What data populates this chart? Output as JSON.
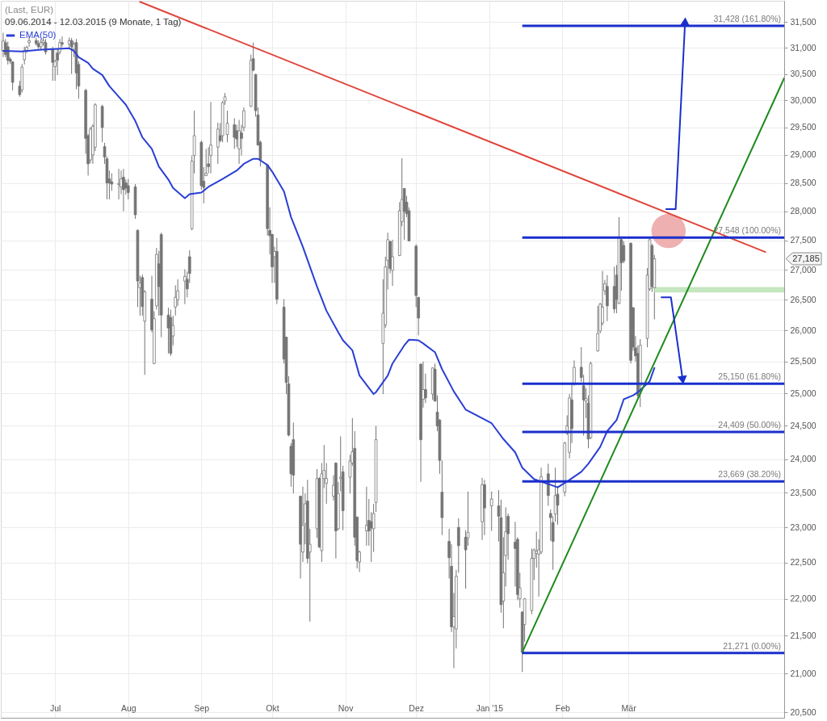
{
  "chart_data": {
    "type": "candlestick",
    "title": "(Last, EUR)",
    "subtitle": "09.06.2014 - 12.03.2015 (9 Monate, 1 Tag)",
    "x": [
      "2014-06-09",
      "2014-06-10",
      "2014-06-11",
      "2014-06-12",
      "2014-06-13",
      "2014-06-16",
      "2014-06-17",
      "2014-06-18",
      "2014-06-19",
      "2014-06-20",
      "2014-06-23",
      "2014-06-24",
      "2014-06-25",
      "2014-06-26",
      "2014-06-27",
      "2014-06-30",
      "2014-07-01",
      "2014-07-02",
      "2014-07-03",
      "2014-07-04",
      "2014-07-07",
      "2014-07-08",
      "2014-07-09",
      "2014-07-10",
      "2014-07-11",
      "2014-07-14",
      "2014-07-15",
      "2014-07-16",
      "2014-07-17",
      "2014-07-18",
      "2014-07-21",
      "2014-07-22",
      "2014-07-23",
      "2014-07-24",
      "2014-07-25",
      "2014-07-28",
      "2014-07-29",
      "2014-07-30",
      "2014-07-31",
      "2014-08-01",
      "2014-08-04",
      "2014-08-05",
      "2014-08-06",
      "2014-08-07",
      "2014-08-08",
      "2014-08-11",
      "2014-08-12",
      "2014-08-13",
      "2014-08-14",
      "2014-08-15",
      "2014-08-18",
      "2014-08-19",
      "2014-08-20",
      "2014-08-21",
      "2014-08-22",
      "2014-08-25",
      "2014-08-26",
      "2014-08-27",
      "2014-08-28",
      "2014-08-29",
      "2014-09-01",
      "2014-09-02",
      "2014-09-03",
      "2014-09-04",
      "2014-09-05",
      "2014-09-08",
      "2014-09-09",
      "2014-09-10",
      "2014-09-11",
      "2014-09-12",
      "2014-09-15",
      "2014-09-16",
      "2014-09-17",
      "2014-09-18",
      "2014-09-19",
      "2014-09-22",
      "2014-09-23",
      "2014-09-24",
      "2014-09-25",
      "2014-09-26",
      "2014-09-29",
      "2014-09-30",
      "2014-10-01",
      "2014-10-02",
      "2014-10-03",
      "2014-10-06",
      "2014-10-07",
      "2014-10-08",
      "2014-10-09",
      "2014-10-10",
      "2014-10-13",
      "2014-10-14",
      "2014-10-15",
      "2014-10-16",
      "2014-10-17",
      "2014-10-20",
      "2014-10-21",
      "2014-10-22",
      "2014-10-23",
      "2014-10-24",
      "2014-10-27",
      "2014-10-28",
      "2014-10-29",
      "2014-10-30",
      "2014-10-31",
      "2014-11-03",
      "2014-11-04",
      "2014-11-05",
      "2014-11-06",
      "2014-11-07",
      "2014-11-10",
      "2014-11-11",
      "2014-11-12",
      "2014-11-13",
      "2014-11-14",
      "2014-11-17",
      "2014-11-18",
      "2014-11-19",
      "2014-11-20",
      "2014-11-21",
      "2014-11-24",
      "2014-11-25",
      "2014-11-26",
      "2014-11-27",
      "2014-11-28",
      "2014-12-01",
      "2014-12-02",
      "2014-12-03",
      "2014-12-04",
      "2014-12-05",
      "2014-12-08",
      "2014-12-09",
      "2014-12-10",
      "2014-12-11",
      "2014-12-12",
      "2014-12-15",
      "2014-12-16",
      "2014-12-17",
      "2014-12-18",
      "2014-12-19",
      "2014-12-22",
      "2014-12-23",
      "2014-12-29",
      "2014-12-30",
      "2015-01-02",
      "2015-01-05",
      "2015-01-06",
      "2015-01-07",
      "2015-01-08",
      "2015-01-09",
      "2015-01-12",
      "2015-01-13",
      "2015-01-14",
      "2015-01-15",
      "2015-01-16",
      "2015-01-19",
      "2015-01-20",
      "2015-01-21",
      "2015-01-22",
      "2015-01-23",
      "2015-01-26",
      "2015-01-27",
      "2015-01-28",
      "2015-01-29",
      "2015-01-30",
      "2015-02-02",
      "2015-02-03",
      "2015-02-04",
      "2015-02-05",
      "2015-02-06",
      "2015-02-09",
      "2015-02-10",
      "2015-02-11",
      "2015-02-12",
      "2015-02-13",
      "2015-02-16",
      "2015-02-17",
      "2015-02-18",
      "2015-02-19",
      "2015-02-20",
      "2015-02-23",
      "2015-02-24",
      "2015-02-25",
      "2015-02-26",
      "2015-02-27",
      "2015-03-02",
      "2015-03-03",
      "2015-03-04",
      "2015-03-05",
      "2015-03-06",
      "2015-03-09",
      "2015-03-10",
      "2015-03-11",
      "2015-03-12"
    ],
    "ohlc": [
      [
        30940,
        31290,
        30820,
        31130
      ],
      [
        31100,
        31170,
        30820,
        30870
      ],
      [
        31020,
        31120,
        30680,
        30760
      ],
      [
        30780,
        30820,
        30690,
        30740
      ],
      [
        30730,
        30740,
        30190,
        30340
      ],
      [
        30270,
        30370,
        30070,
        30110
      ],
      [
        30200,
        30690,
        30150,
        30630
      ],
      [
        30770,
        31020,
        30680,
        30950
      ],
      [
        30950,
        31040,
        30900,
        31010
      ],
      [
        31100,
        31220,
        31020,
        31140
      ],
      [
        31140,
        31200,
        31040,
        31080
      ],
      [
        31080,
        31140,
        30980,
        31020
      ],
      [
        31020,
        31170,
        30970,
        31100
      ],
      [
        31100,
        31200,
        31040,
        31140
      ],
      [
        31100,
        31170,
        30870,
        30920
      ],
      [
        30970,
        31020,
        30370,
        30720
      ],
      [
        30640,
        30770,
        30370,
        30740
      ],
      [
        30900,
        30980,
        30480,
        30760
      ],
      [
        30920,
        31170,
        30870,
        31100
      ],
      [
        31100,
        31220,
        31020,
        31070
      ],
      [
        31070,
        31200,
        31000,
        31140
      ],
      [
        31140,
        31190,
        30500,
        31020
      ],
      [
        30970,
        31120,
        30820,
        31070
      ],
      [
        31100,
        31170,
        30210,
        30520
      ],
      [
        30680,
        30740,
        30030,
        30270
      ],
      [
        30190,
        30220,
        29020,
        29300
      ],
      [
        29350,
        29380,
        28630,
        28840
      ],
      [
        28910,
        29510,
        28850,
        29470
      ],
      [
        29000,
        29560,
        28840,
        29520
      ],
      [
        29140,
        29950,
        29070,
        29920
      ],
      [
        29890,
        29920,
        29230,
        29500
      ],
      [
        29150,
        29220,
        28840,
        28960
      ],
      [
        28930,
        28970,
        28210,
        28500
      ],
      [
        28570,
        28720,
        28210,
        28500
      ],
      [
        28520,
        28670,
        28360,
        28480
      ],
      [
        28470,
        28750,
        28210,
        28490
      ],
      [
        28430,
        28720,
        28300,
        28570
      ],
      [
        28600,
        28750,
        28000,
        28380
      ],
      [
        28500,
        28560,
        28290,
        28410
      ],
      [
        28450,
        28570,
        28210,
        28330
      ],
      [
        28430,
        28480,
        27870,
        27940
      ],
      [
        27670,
        27690,
        26380,
        26810
      ],
      [
        26700,
        26900,
        26240,
        26780
      ],
      [
        26870,
        26920,
        26240,
        26390
      ],
      [
        26150,
        26660,
        25290,
        26630
      ],
      [
        26510,
        26900,
        25970,
        26010
      ],
      [
        25470,
        26310,
        25460,
        26190
      ],
      [
        26400,
        27370,
        26340,
        27260
      ],
      [
        27100,
        27320,
        26240,
        26720
      ],
      [
        27600,
        27630,
        25890,
        26250
      ],
      [
        26250,
        26370,
        25630,
        26040
      ],
      [
        26210,
        26340,
        25590,
        25630
      ],
      [
        25910,
        26240,
        25760,
        26080
      ],
      [
        26380,
        26740,
        26240,
        26540
      ],
      [
        26500,
        26840,
        26400,
        26650
      ],
      [
        26810,
        27010,
        26430,
        26890
      ],
      [
        26840,
        26970,
        26540,
        26680
      ],
      [
        27220,
        27330,
        26780,
        26940
      ],
      [
        27700,
        28990,
        27670,
        28890
      ],
      [
        28990,
        29810,
        28670,
        29350
      ],
      [
        29230,
        29260,
        28380,
        28450
      ],
      [
        28530,
        28780,
        28140,
        28420
      ],
      [
        28630,
        29110,
        28620,
        28670
      ],
      [
        28840,
        29140,
        28670,
        28790
      ],
      [
        28990,
        29970,
        28670,
        29180
      ],
      [
        29140,
        29590,
        28840,
        29470
      ],
      [
        29350,
        29580,
        29230,
        29260
      ],
      [
        29350,
        29990,
        29230,
        29960
      ],
      [
        29990,
        30140,
        29920,
        30070
      ],
      [
        29370,
        29810,
        29230,
        29580
      ],
      [
        29550,
        29670,
        29110,
        29320
      ],
      [
        29440,
        29550,
        29140,
        29290
      ],
      [
        29110,
        29640,
        28840,
        29440
      ],
      [
        29400,
        29550,
        28990,
        29300
      ],
      [
        29500,
        29870,
        29430,
        29810
      ],
      [
        29890,
        30870,
        29880,
        30760
      ],
      [
        30790,
        31100,
        30550,
        30570
      ],
      [
        30490,
        30500,
        29700,
        29810
      ],
      [
        29730,
        29870,
        29170,
        29180
      ],
      [
        29230,
        29260,
        28790,
        28910
      ],
      [
        28820,
        28820,
        27580,
        27700
      ],
      [
        27670,
        28070,
        27260,
        27580
      ],
      [
        27600,
        27610,
        26780,
        27050
      ],
      [
        27220,
        27390,
        26780,
        27310
      ],
      [
        27310,
        27540,
        26430,
        26510
      ],
      [
        26380,
        26510,
        25470,
        25540
      ],
      [
        25890,
        25900,
        24990,
        25170
      ],
      [
        25150,
        25270,
        24340,
        24360
      ],
      [
        24190,
        24240,
        23590,
        23780
      ],
      [
        24290,
        24550,
        23490,
        23760
      ],
      [
        23450,
        23460,
        22280,
        22760
      ],
      [
        22650,
        23590,
        22510,
        23030
      ],
      [
        23050,
        23490,
        22760,
        23340
      ],
      [
        23380,
        23690,
        22490,
        22560
      ],
      [
        22650,
        22980,
        21690,
        22760
      ],
      [
        22980,
        23850,
        22850,
        23710
      ],
      [
        23710,
        23730,
        22710,
        22720
      ],
      [
        22670,
        23940,
        22510,
        23780
      ],
      [
        23710,
        24210,
        23570,
        23830
      ],
      [
        23640,
        23940,
        23340,
        23710
      ],
      [
        23450,
        23760,
        23390,
        23610
      ],
      [
        23940,
        23950,
        22560,
        22950
      ],
      [
        22980,
        23660,
        22960,
        23490
      ],
      [
        23710,
        24340,
        23520,
        23730
      ],
      [
        23810,
        23900,
        22960,
        23240
      ],
      [
        23730,
        24060,
        23490,
        23970
      ],
      [
        23940,
        24620,
        23900,
        24110
      ],
      [
        24160,
        24420,
        22740,
        22860
      ],
      [
        23150,
        23150,
        22420,
        22530
      ],
      [
        22510,
        22670,
        22370,
        22650
      ],
      [
        22950,
        23590,
        22740,
        23030
      ],
      [
        23100,
        23410,
        22740,
        22950
      ],
      [
        23080,
        23220,
        22510,
        22990
      ],
      [
        22980,
        23340,
        22650,
        23200
      ],
      [
        23360,
        24500,
        23220,
        24290
      ],
      [
        25790,
        26840,
        24990,
        26280
      ],
      [
        26090,
        27220,
        26040,
        27050
      ],
      [
        27160,
        27630,
        26670,
        27510
      ],
      [
        27480,
        27490,
        26940,
        27020
      ],
      [
        26990,
        27510,
        26730,
        27220
      ],
      [
        27240,
        28160,
        27230,
        28010
      ],
      [
        27820,
        28940,
        27740,
        28210
      ],
      [
        28400,
        28410,
        27510,
        28000
      ],
      [
        28160,
        28270,
        27900,
        27960
      ],
      [
        28010,
        28070,
        27480,
        27490
      ],
      [
        27400,
        27430,
        26380,
        26570
      ],
      [
        26540,
        26550,
        25920,
        26200
      ],
      [
        25460,
        25470,
        23660,
        24290
      ],
      [
        24910,
        25500,
        24780,
        25060
      ],
      [
        25060,
        25310,
        24850,
        24930
      ],
      [
        24990,
        25410,
        24900,
        25400
      ],
      [
        25380,
        25470,
        24880,
        24880
      ],
      [
        24710,
        24970,
        24420,
        24500
      ],
      [
        24590,
        24600,
        23780,
        23980
      ],
      [
        23510,
        23980,
        22890,
        23140
      ],
      [
        22800,
        22980,
        22280,
        22570
      ],
      [
        22450,
        22760,
        21550,
        21620
      ],
      [
        21620,
        22080,
        21070,
        21760
      ],
      [
        21590,
        22400,
        21330,
        22310
      ],
      [
        23000,
        23130,
        22360,
        22740
      ],
      [
        22860,
        22960,
        22140,
        22680
      ],
      [
        22850,
        23520,
        22740,
        22930
      ],
      [
        23080,
        23720,
        22820,
        23620
      ],
      [
        23620,
        23690,
        22890,
        23280
      ],
      [
        23310,
        23520,
        22950,
        23410
      ],
      [
        23310,
        23540,
        22800,
        23160
      ],
      [
        23140,
        23400,
        21810,
        21920
      ],
      [
        21970,
        22860,
        21600,
        22360
      ],
      [
        22600,
        23290,
        22170,
        22940
      ],
      [
        23160,
        23200,
        22540,
        22910
      ],
      [
        22790,
        23080,
        22170,
        22700
      ],
      [
        22830,
        22860,
        21980,
        22060
      ],
      [
        22000,
        22360,
        21880,
        22150
      ],
      [
        21820,
        21830,
        21020,
        21280
      ],
      [
        21650,
        22010,
        21420,
        22000
      ],
      [
        21840,
        22700,
        21790,
        22560
      ],
      [
        22560,
        22700,
        22260,
        22680
      ],
      [
        22630,
        22940,
        22430,
        22660
      ],
      [
        22620,
        22830,
        22030,
        22680
      ],
      [
        22650,
        23870,
        22620,
        23740
      ],
      [
        23780,
        23930,
        23310,
        23460
      ],
      [
        23200,
        23260,
        22810,
        23140
      ],
      [
        23070,
        23160,
        22400,
        22800
      ],
      [
        23190,
        23870,
        23080,
        23460
      ],
      [
        23480,
        23600,
        23040,
        23320
      ],
      [
        23510,
        24260,
        23450,
        24240
      ],
      [
        24390,
        24660,
        24360,
        24500
      ],
      [
        24100,
        24990,
        24010,
        24930
      ],
      [
        24900,
        25150,
        24240,
        24460
      ],
      [
        25150,
        25520,
        25120,
        25410
      ],
      [
        25410,
        25730,
        25180,
        25250
      ],
      [
        25120,
        25290,
        24350,
        24900
      ],
      [
        24880,
        25080,
        24620,
        24920
      ],
      [
        24850,
        24970,
        24160,
        24300
      ],
      [
        24320,
        25500,
        24300,
        25470
      ],
      [
        25670,
        26400,
        25660,
        25950
      ],
      [
        25990,
        26450,
        25950,
        26430
      ],
      [
        26120,
        26980,
        26080,
        26380
      ],
      [
        26650,
        26830,
        26580,
        26770
      ],
      [
        26720,
        26910,
        26150,
        26400
      ],
      [
        26720,
        27050,
        26280,
        26350
      ],
      [
        26910,
        27080,
        26280,
        26510
      ],
      [
        26440,
        27900,
        26430,
        27550
      ],
      [
        27510,
        27530,
        26650,
        27120
      ],
      [
        27410,
        27480,
        27110,
        27150
      ],
      [
        27450,
        27460,
        25470,
        25520
      ],
      [
        26370,
        26380,
        25670,
        25730
      ],
      [
        25720,
        25910,
        25500,
        25590
      ],
      [
        25630,
        25760,
        24910,
        24970
      ],
      [
        25120,
        25860,
        24790,
        25760
      ],
      [
        25870,
        27030,
        25730,
        26910
      ],
      [
        26680,
        27530,
        26650,
        27510
      ],
      [
        27410,
        27440,
        26630,
        26720
      ],
      [
        26700,
        27250,
        26180,
        27185
      ]
    ],
    "color": "#747474",
    "series": [
      {
        "name": "EMA(50)",
        "type": "line",
        "color": "#2a3fd4",
        "x": [
          "2014-06-09",
          "2014-06-17",
          "2014-06-24",
          "2014-07-07",
          "2014-07-09",
          "2014-07-11",
          "2014-07-15",
          "2014-07-17",
          "2014-07-21",
          "2014-07-24",
          "2014-07-29",
          "2014-07-31",
          "2014-08-04",
          "2014-08-07",
          "2014-08-11",
          "2014-08-14",
          "2014-08-18",
          "2014-08-20",
          "2014-08-25",
          "2014-08-27",
          "2014-09-01",
          "2014-09-04",
          "2014-09-10",
          "2014-09-16",
          "2014-09-19",
          "2014-09-23",
          "2014-09-25",
          "2014-09-29",
          "2014-10-01",
          "2014-10-06",
          "2014-10-09",
          "2014-10-14",
          "2014-10-20",
          "2014-10-24",
          "2014-10-29",
          "2014-10-31",
          "2014-11-04",
          "2014-11-07",
          "2014-11-13",
          "2014-11-14",
          "2014-11-19",
          "2014-11-21",
          "2014-11-26",
          "2014-11-28",
          "2014-12-02",
          "2014-12-04",
          "2014-12-09",
          "2014-12-12",
          "2014-12-17",
          "2014-12-22",
          "2015-01-02",
          "2015-01-07",
          "2015-01-12",
          "2015-01-15",
          "2015-01-20",
          "2015-01-26",
          "2015-01-30",
          "2015-02-04",
          "2015-02-09",
          "2015-02-12",
          "2015-02-17",
          "2015-02-20",
          "2015-02-24",
          "2015-02-27",
          "2015-03-03",
          "2015-03-05",
          "2015-03-10",
          "2015-03-12"
        ],
        "values": [
          30940,
          30930,
          30960,
          30990,
          30940,
          30820,
          30710,
          30600,
          30480,
          30270,
          30020,
          29920,
          29620,
          29320,
          29110,
          28790,
          28560,
          28410,
          28230,
          28300,
          28330,
          28430,
          28570,
          28720,
          28840,
          28930,
          28930,
          28820,
          28700,
          28350,
          27900,
          27390,
          26720,
          26320,
          25970,
          25840,
          25680,
          25280,
          24990,
          25020,
          25280,
          25470,
          25760,
          25850,
          25840,
          25790,
          25650,
          25380,
          25030,
          24750,
          24540,
          24300,
          24100,
          23870,
          23700,
          23630,
          23580,
          23690,
          23810,
          23930,
          24180,
          24420,
          24590,
          24910,
          24970,
          25020,
          25190,
          25400
        ]
      },
      {
        "type": "line",
        "color": "#e0463c",
        "x": [
          "2014-08-06",
          "2015-04-28"
        ],
        "values": [
          31900,
          27300
        ]
      },
      {
        "type": "line",
        "color": "#1e8a1e",
        "x": [
          "2015-01-15",
          "2015-05-06"
        ],
        "values": [
          21280,
          30420
        ]
      },
      {
        "type": "scatter",
        "color": "#eeb0b0",
        "x": [
          "2015-03-18"
        ],
        "values": [
          27660
        ]
      },
      {
        "type": "line",
        "color": "#1a2fcc",
        "x": [
          "2015-03-17",
          "2015-03-21",
          "2015-03-25"
        ],
        "values": [
          28040,
          28040,
          31510
        ]
      },
      {
        "type": "scatter",
        "color": "#1a2fcc",
        "marker": "triangle",
        "x": [
          "2015-03-25"
        ],
        "values": [
          31510
        ]
      },
      {
        "type": "line",
        "color": "#1a2fcc",
        "x": [
          "2015-03-15",
          "2015-03-19",
          "2015-03-24"
        ],
        "values": [
          26540,
          26540,
          25210
        ]
      },
      {
        "type": "scatter",
        "color": "#1a2fcc",
        "marker": "triangle",
        "x": [
          "2015-03-24"
        ],
        "values": [
          25210
        ]
      }
    ],
    "ref_lines": [
      {
        "axis": "y",
        "value": 31428,
        "label": "31,428 (161.80%)",
        "color": "#1a2fcc"
      },
      {
        "axis": "y",
        "value": 27548,
        "label": "27,548 (100.00%)",
        "color": "#1a2fcc"
      },
      {
        "axis": "y",
        "value": 25150,
        "label": "25,150 (61.80%)",
        "color": "#1a2fcc"
      },
      {
        "axis": "y",
        "value": 24409,
        "label": "24,409 (50.00%)",
        "color": "#1a2fcc"
      },
      {
        "axis": "y",
        "value": 23669,
        "label": "23,669 (38.20%)",
        "color": "#1a2fcc"
      },
      {
        "axis": "y",
        "value": 21271,
        "label": "21,271 (0.00%)",
        "color": "#1a2fcc"
      }
    ],
    "bands": [
      {
        "axis": "y",
        "from": 26620,
        "to": 26710,
        "color": "#c5e6c0"
      }
    ],
    "annotations": [
      "27,185"
    ],
    "xlim": [
      "2014-06-08",
      "2015-05-06"
    ],
    "xticks": [
      {
        "value": "2014-07-01",
        "label": "Jul"
      },
      {
        "value": "2014-08-01",
        "label": "Aug"
      },
      {
        "value": "2014-09-01",
        "label": "Sep"
      },
      {
        "value": "2014-10-01",
        "label": "Okt"
      },
      {
        "value": "2014-11-01",
        "label": "Nov"
      },
      {
        "value": "2014-12-01",
        "label": "Dez"
      },
      {
        "value": "2015-01-01",
        "label": "Jan '15"
      },
      {
        "value": "2015-02-01",
        "label": "Feb"
      },
      {
        "value": "2015-03-01",
        "label": "Mär"
      }
    ],
    "ylim": [
      20430,
      31920
    ],
    "yticks": [
      {
        "value": 20500,
        "label": "20,500"
      },
      {
        "value": 21000,
        "label": "21,000"
      },
      {
        "value": 21500,
        "label": "21,500"
      },
      {
        "value": 22000,
        "label": "22,000"
      },
      {
        "value": 22500,
        "label": "22,500"
      },
      {
        "value": 23000,
        "label": "23,000"
      },
      {
        "value": 23500,
        "label": "23,500"
      },
      {
        "value": 24000,
        "label": "24,000"
      },
      {
        "value": 24500,
        "label": "24,500"
      },
      {
        "value": 25000,
        "label": "25,000"
      },
      {
        "value": 25500,
        "label": "25,500"
      },
      {
        "value": 26000,
        "label": "26,000"
      },
      {
        "value": 26500,
        "label": "26,500"
      },
      {
        "value": 27000,
        "label": "27,000"
      },
      {
        "value": 27500,
        "label": "27,500"
      },
      {
        "value": 28000,
        "label": "28,000"
      },
      {
        "value": 28500,
        "label": "28,500"
      },
      {
        "value": 29000,
        "label": "29,000"
      },
      {
        "value": 29500,
        "label": "29,500"
      },
      {
        "value": 30000,
        "label": "30,000"
      },
      {
        "value": 30500,
        "label": "30,500"
      },
      {
        "value": 31000,
        "label": "31,000"
      },
      {
        "value": 31500,
        "label": "31,500"
      }
    ],
    "log": "y",
    "grid": true,
    "legend": "top left"
  }
}
